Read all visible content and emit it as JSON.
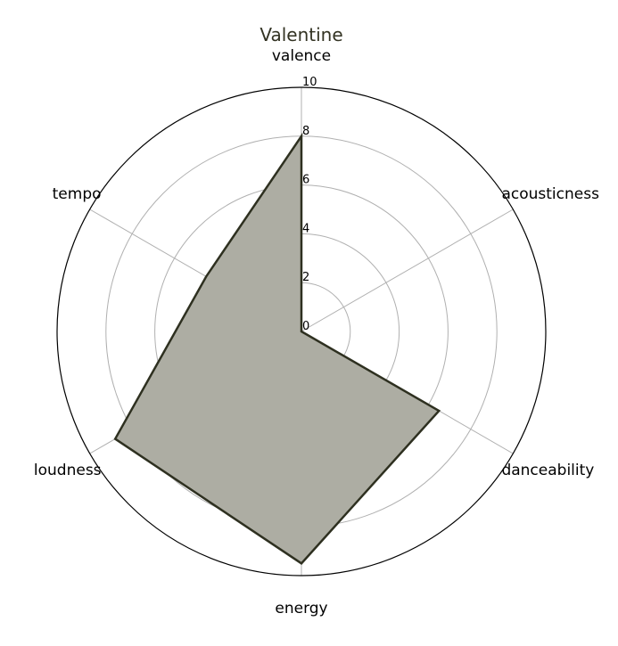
{
  "chart_data": {
    "type": "radar",
    "title": "Valentine",
    "axes": [
      "valence",
      "acousticness",
      "danceability",
      "energy",
      "loudness",
      "tempo"
    ],
    "series": [
      {
        "values": [
          8,
          0,
          6.5,
          9.5,
          8.8,
          4.5
        ]
      }
    ],
    "rlim": [
      0,
      10
    ],
    "r_ticks": [
      0,
      2,
      4,
      6,
      8,
      10
    ],
    "grid": true,
    "colors": {
      "title": "#333323",
      "fill": "#adada3",
      "stroke": "#2e3020",
      "grid": "#b0b0b0",
      "outer_ring": "#000000"
    }
  }
}
